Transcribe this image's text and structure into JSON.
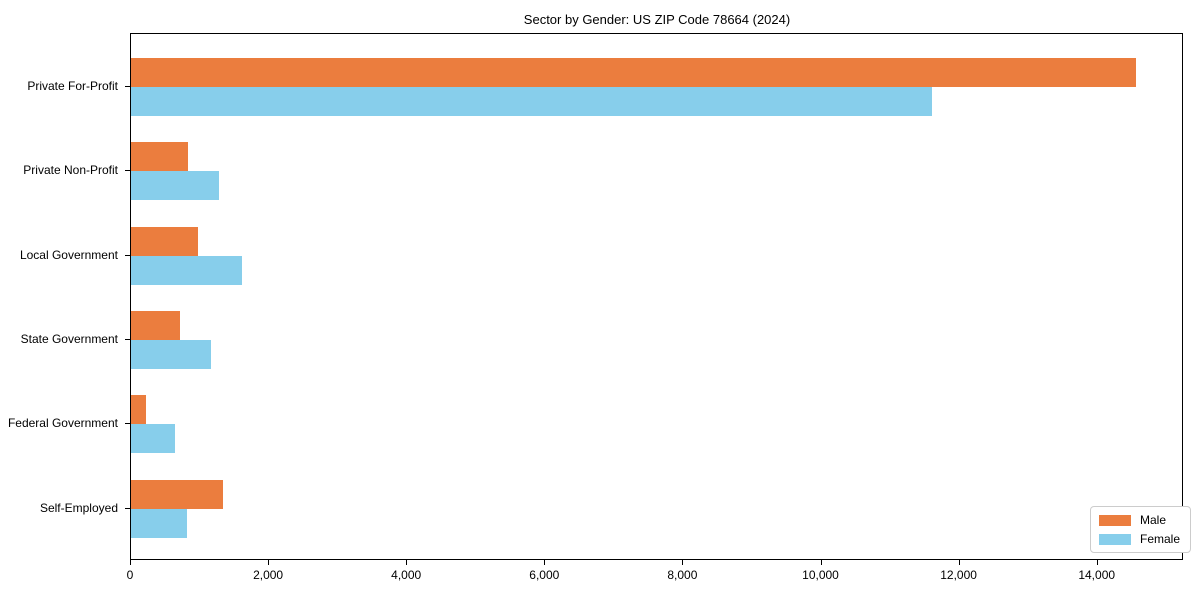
{
  "chart_data": {
    "type": "bar",
    "orientation": "horizontal",
    "title": "Sector by Gender: US ZIP Code 78664 (2024)",
    "categories": [
      "Private For-Profit",
      "Private Non-Profit",
      "Local Government",
      "State Government",
      "Federal Government",
      "Self-Employed"
    ],
    "series": [
      {
        "name": "Male",
        "color": "#eb7d3e",
        "values": [
          14550,
          830,
          975,
          705,
          215,
          1335
        ]
      },
      {
        "name": "Female",
        "color": "#87ceeb",
        "values": [
          11600,
          1280,
          1600,
          1165,
          635,
          805
        ]
      }
    ],
    "xlabel": "",
    "ylabel": "",
    "xlim": [
      0,
      15250
    ],
    "xticks": [
      0,
      2000,
      4000,
      6000,
      8000,
      10000,
      12000,
      14000
    ],
    "grid": false,
    "legend_position": "lower right",
    "axis_color": "#000000",
    "background_color": "#ffffff"
  }
}
